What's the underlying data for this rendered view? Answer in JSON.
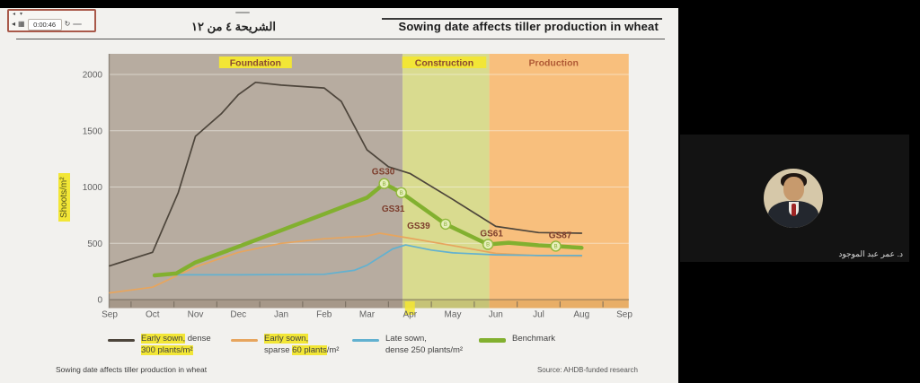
{
  "toolbar": {
    "time": "0:00:46"
  },
  "header": {
    "slide_counter": "الشريحة ٤ من ١٢",
    "title": "Sowing date affects tiller production in wheat"
  },
  "footer": {
    "caption": "Sowing date affects tiller production in wheat",
    "source": "Source: AHDB-funded research"
  },
  "participant": {
    "name": "د. عمر عبد الموجود"
  },
  "colors": {
    "highlight": "#f2e636"
  },
  "chart_data": {
    "type": "line",
    "ylabel": "Shoots/m²",
    "ylim": [
      0,
      2000
    ],
    "yticks": [
      0,
      500,
      1000,
      1500,
      2000
    ],
    "x_labels": [
      "Sep",
      "Oct",
      "Nov",
      "Dec",
      "Jan",
      "Feb",
      "Mar",
      "Apr",
      "May",
      "Jun",
      "Jul",
      "Aug",
      "Sep"
    ],
    "highlighted_x_label": "Apr",
    "grid": true,
    "phases": [
      {
        "label": "Foundation",
        "start_month": 0,
        "end_month": 6.83,
        "zone_color": "#b7aca0",
        "bar_color": "#a69889",
        "label_color": "#8a4a30",
        "label_highlighted": true,
        "label_month": 3.4
      },
      {
        "label": "Construction",
        "start_month": 6.83,
        "end_month": 8.85,
        "zone_color": "#d9db8f",
        "bar_color": "#c6c377",
        "label_color": "#8a4a30",
        "label_highlighted": true,
        "label_month": 7.8
      },
      {
        "label": "Production",
        "start_month": 8.85,
        "end_month": 12.1,
        "zone_color": "#f8bf7d",
        "bar_color": "#e8ae67",
        "label_color": "#b05a35",
        "label_highlighted": false,
        "label_month": 10.35
      }
    ],
    "series": [
      {
        "id": "early-dense",
        "name": "Early sown, dense 300 plants/m²",
        "color": "#4d453b",
        "width": 1.7,
        "points": [
          [
            0,
            300
          ],
          [
            1,
            420
          ],
          [
            1.6,
            950
          ],
          [
            2,
            1450
          ],
          [
            2.6,
            1650
          ],
          [
            3,
            1820
          ],
          [
            3.4,
            1930
          ],
          [
            4,
            1905
          ],
          [
            5,
            1880
          ],
          [
            5.4,
            1760
          ],
          [
            6,
            1330
          ],
          [
            6.5,
            1180
          ],
          [
            7,
            1120
          ],
          [
            8,
            890
          ],
          [
            9,
            650
          ],
          [
            10,
            595
          ],
          [
            11,
            590
          ]
        ]
      },
      {
        "id": "early-sparse",
        "name": "Early sown, sparse 60 plants/m²",
        "color": "#e7a55e",
        "width": 1.7,
        "points": [
          [
            0,
            60
          ],
          [
            1,
            110
          ],
          [
            2,
            290
          ],
          [
            3,
            420
          ],
          [
            4,
            500
          ],
          [
            5,
            540
          ],
          [
            6,
            565
          ],
          [
            6.3,
            590
          ],
          [
            7,
            545
          ],
          [
            8,
            480
          ],
          [
            9,
            410
          ],
          [
            10,
            390
          ],
          [
            11,
            385
          ]
        ]
      },
      {
        "id": "late-dense",
        "name": "Late sown, dense 250 plants/m²",
        "color": "#62b1d0",
        "width": 1.7,
        "points": [
          [
            1.5,
            220
          ],
          [
            3,
            220
          ],
          [
            5,
            225
          ],
          [
            5.7,
            260
          ],
          [
            6,
            305
          ],
          [
            6.6,
            450
          ],
          [
            6.9,
            485
          ],
          [
            7.5,
            440
          ],
          [
            8,
            415
          ],
          [
            9,
            398
          ],
          [
            10,
            392
          ],
          [
            11,
            392
          ]
        ]
      },
      {
        "id": "benchmark",
        "name": "Benchmark",
        "color": "#82b02f",
        "width": 4.5,
        "points": [
          [
            1.05,
            215
          ],
          [
            1.55,
            232
          ],
          [
            2,
            330
          ],
          [
            3,
            470
          ],
          [
            4,
            615
          ],
          [
            5,
            760
          ],
          [
            6,
            905
          ],
          [
            6.4,
            1030
          ],
          [
            6.8,
            950
          ],
          [
            7.83,
            670
          ],
          [
            8.82,
            490
          ],
          [
            9.3,
            505
          ],
          [
            10,
            482
          ],
          [
            10.4,
            475
          ],
          [
            11,
            460
          ]
        ]
      }
    ],
    "gs_markers": [
      {
        "label": "GS30",
        "month": 6.4,
        "value": 1030
      },
      {
        "label": "GS31",
        "month": 6.8,
        "value": 950
      },
      {
        "label": "GS39",
        "month": 7.83,
        "value": 670
      },
      {
        "label": "GS61",
        "month": 8.82,
        "value": 490
      },
      {
        "label": "GS87",
        "month": 10.4,
        "value": 475
      }
    ],
    "legend": [
      {
        "color": "#4d453b",
        "thick": false,
        "lines": [
          [
            {
              "t": "Early sown,",
              "hl": true
            },
            {
              "t": " dense",
              "hl": false
            }
          ],
          [
            {
              "t": "300 plants/m²",
              "hl": true
            }
          ]
        ]
      },
      {
        "color": "#e7a55e",
        "thick": false,
        "lines": [
          [
            {
              "t": "Early sown,",
              "hl": true
            }
          ],
          [
            {
              "t": "sparse ",
              "hl": false
            },
            {
              "t": "60 plants",
              "hl": true
            },
            {
              "t": "/m²",
              "hl": false
            }
          ]
        ]
      },
      {
        "color": "#62b1d0",
        "thick": false,
        "lines": [
          [
            {
              "t": "Late sown,",
              "hl": false
            }
          ],
          [
            {
              "t": "dense 250 plants/m²",
              "hl": false
            }
          ]
        ]
      },
      {
        "color": "#82b02f",
        "thick": true,
        "lines": [
          [
            {
              "t": "Benchmark",
              "hl": false
            }
          ]
        ]
      }
    ]
  }
}
